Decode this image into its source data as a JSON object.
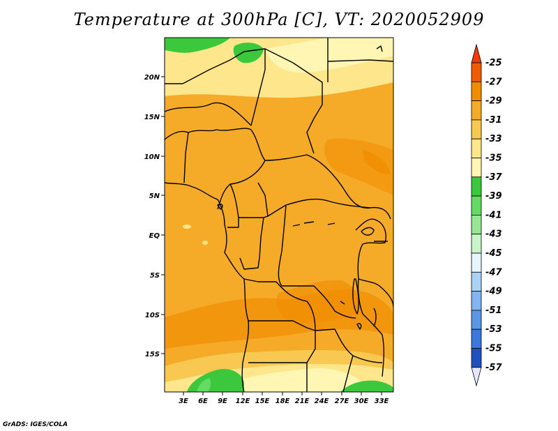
{
  "title": "Temperature at 300hPa [C], VT: 2020052909",
  "credit": "GrADS: IGES/COLA",
  "map": {
    "lat_labels": [
      "20N",
      "15N",
      "10N",
      "5N",
      "EQ",
      "5S",
      "10S",
      "15S"
    ],
    "lon_labels": [
      "3E",
      "6E",
      "9E",
      "12E",
      "15E",
      "18E",
      "21E",
      "24E",
      "27E",
      "30E",
      "33E"
    ]
  },
  "colorbar": {
    "labels": [
      "-25",
      "-27",
      "-29",
      "-31",
      "-33",
      "-35",
      "-37",
      "-39",
      "-41",
      "-43",
      "-45",
      "-47",
      "-49",
      "-51",
      "-53",
      "-55",
      "-57"
    ],
    "colors": [
      "#f05a00",
      "#f08c00",
      "#f5aa28",
      "#f8c850",
      "#fde68c",
      "#fff6b4",
      "#3cc83c",
      "#64dc64",
      "#96e696",
      "#c8f5c8",
      "#e6f5ff",
      "#aad2f5",
      "#82b4f0",
      "#5a96e6",
      "#3c78dc",
      "#1e50be",
      "#14289a",
      "#0a0a6e",
      "#e6e6ff"
    ],
    "top_color": "#f03c00",
    "bottom_color": "#e6e6ff"
  },
  "colors": {
    "t33": "#fff6b4",
    "t31": "#fde68c",
    "t29": "#f8c850",
    "t27": "#f5aa28",
    "t25": "#f08c00",
    "g37": "#3cc83c",
    "g39": "#64dc64"
  }
}
